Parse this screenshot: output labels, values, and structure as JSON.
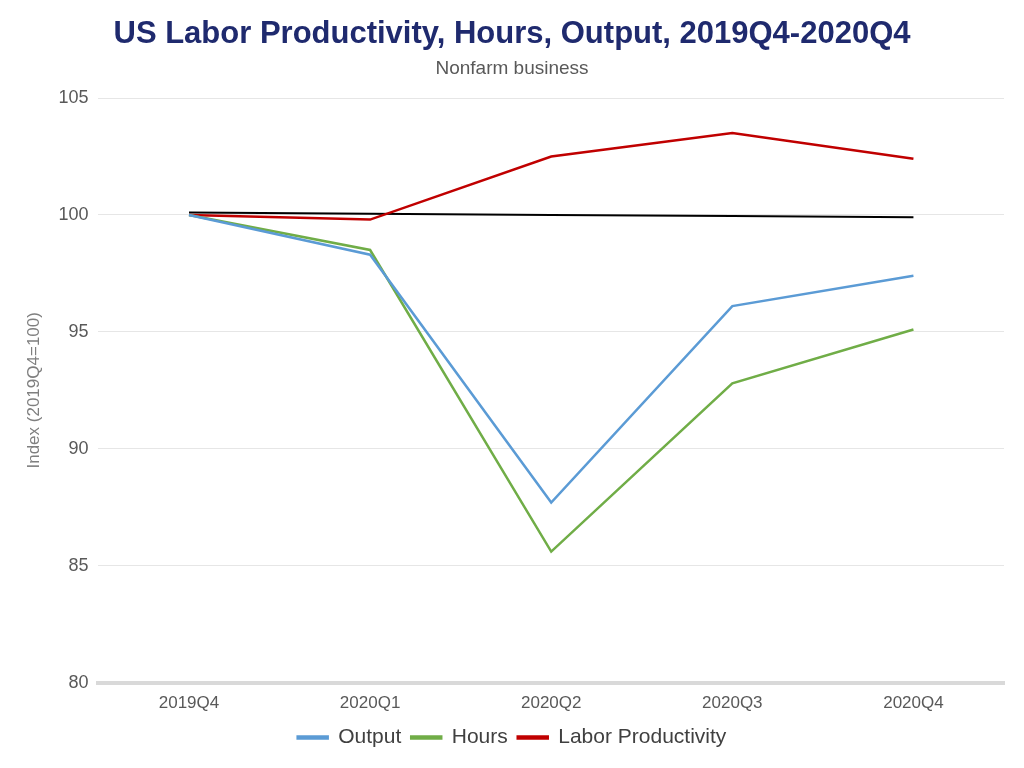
{
  "chart_data": {
    "type": "line",
    "title": "US Labor Productivity, Hours, Output, 2019Q4-2020Q4",
    "subtitle": "Nonfarm business",
    "y_label": "Index (2019Q4=100)",
    "categories": [
      "2019Q4",
      "2020Q1",
      "2020Q2",
      "2020Q3",
      "2020Q4"
    ],
    "series": [
      {
        "name": "Output",
        "color": "#5b9bd5",
        "values": [
          100,
          98.3,
          87.7,
          96.1,
          97.4
        ]
      },
      {
        "name": "Hours",
        "color": "#70ad47",
        "values": [
          100,
          98.5,
          85.6,
          92.8,
          95.1
        ]
      },
      {
        "name": "Labor Productivity",
        "color": "#c00000",
        "values": [
          100,
          99.8,
          102.5,
          103.5,
          102.4
        ]
      },
      {
        "color": "#000000",
        "values": [
          100.1,
          100.05,
          100,
          99.95,
          99.9
        ]
      }
    ],
    "ylim": [
      80,
      105
    ],
    "yticks": [
      80,
      85,
      90,
      95,
      100,
      105
    ],
    "grid": true,
    "legend": "bottom"
  }
}
